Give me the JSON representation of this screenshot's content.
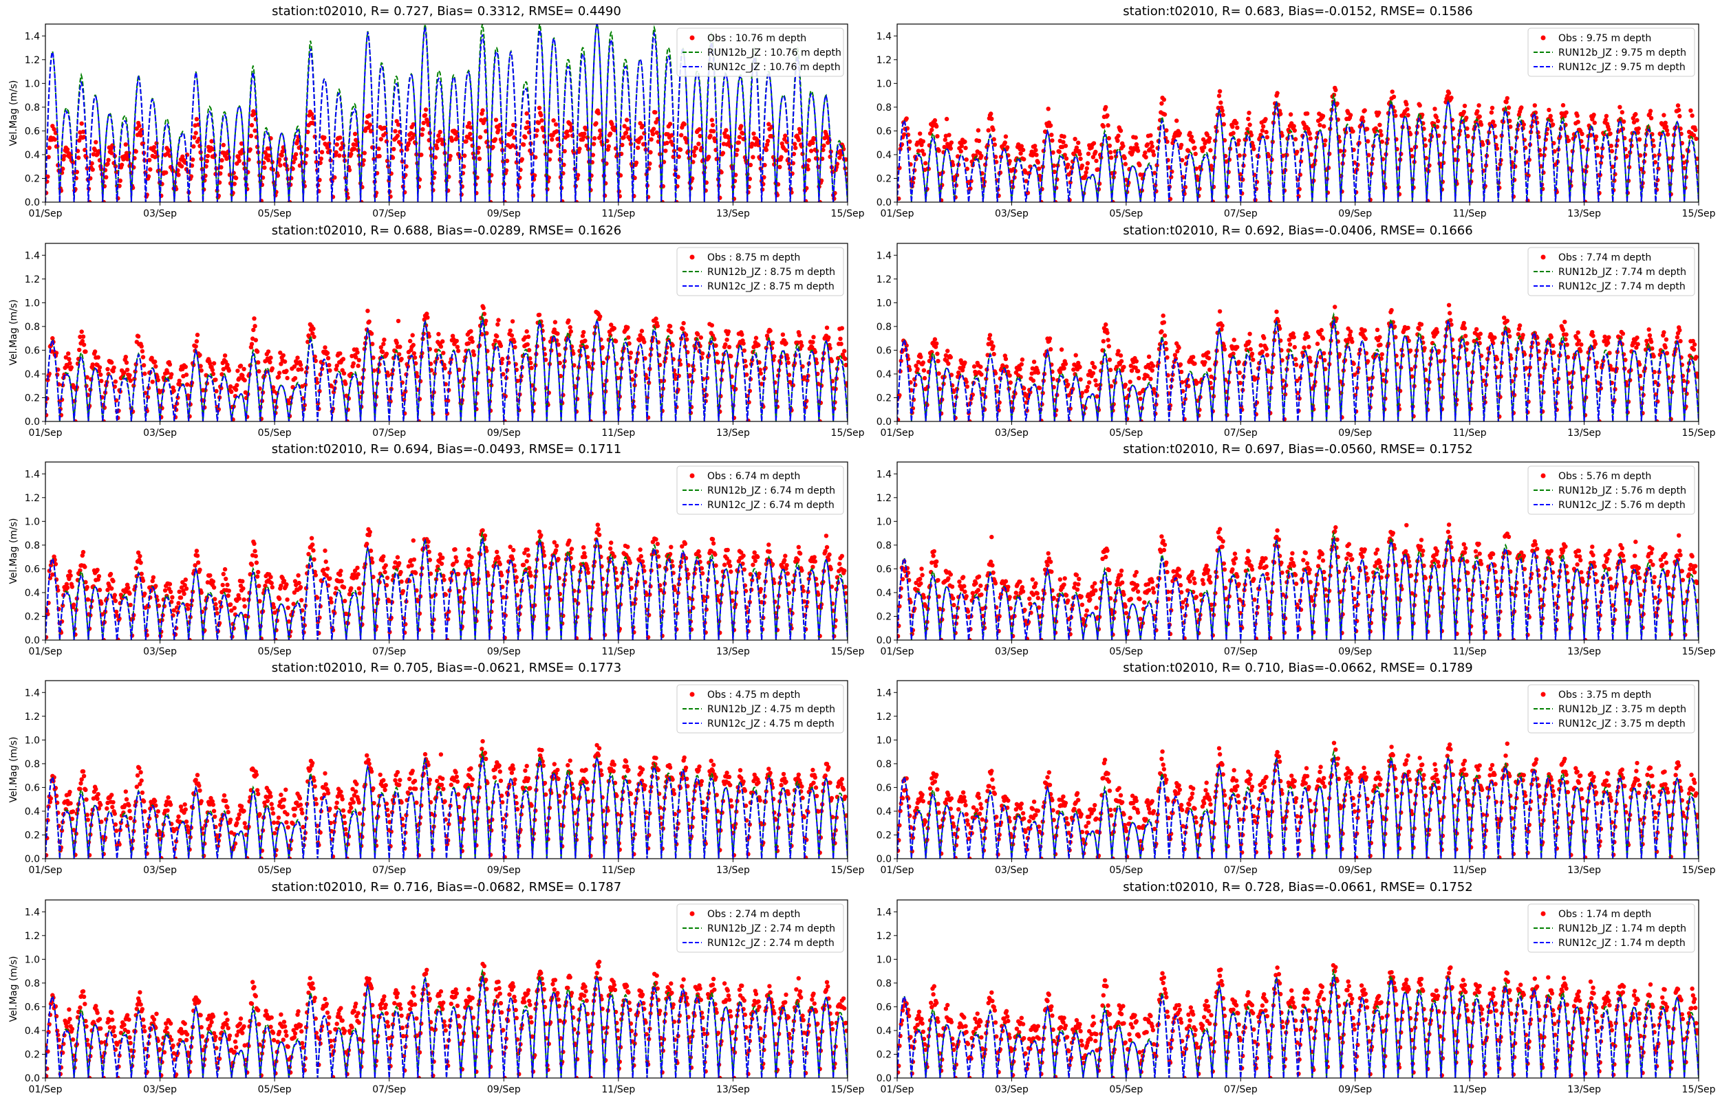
{
  "chart_data": {
    "type": "scatter+line",
    "ylabel": "Vel.Mag (m/s)",
    "ylim": [
      0,
      1.5
    ],
    "yticks": [
      "0.0",
      "0.2",
      "0.4",
      "0.6",
      "0.8",
      "1.0",
      "1.2",
      "1.4"
    ],
    "xlim_days": [
      0,
      14
    ],
    "xticks": [
      "01/Sep",
      "03/Sep",
      "05/Sep",
      "07/Sep",
      "09/Sep",
      "11/Sep",
      "13/Sep",
      "15/Sep"
    ],
    "series_colors": {
      "obs": "#ff0000",
      "run12b": "#008000",
      "run12c": "#0000ff"
    },
    "peak_profiles": {
      "deep_model": [
        1.27,
        0.77,
        1.07,
        0.9,
        0.75,
        0.72,
        1.07,
        0.87,
        0.7,
        0.57,
        1.1,
        0.8,
        0.76,
        0.8,
        1.15,
        0.6,
        0.58,
        0.59,
        1.36,
        1.03,
        0.95,
        0.8,
        1.44,
        1.17,
        1.06,
        1.07,
        1.5,
        1.1,
        1.07,
        1.1,
        1.5,
        1.3,
        1.27,
        1.0,
        1.5,
        1.38,
        1.2,
        1.3,
        1.5,
        1.43,
        1.2,
        1.2,
        1.47,
        1.3,
        1.3,
        1.1,
        1.43,
        1.08,
        1.07,
        1.3,
        1.1,
        0.89,
        1.3,
        0.93,
        0.9,
        0.5
      ],
      "deep_obs": [
        0.6,
        0.45,
        0.6,
        0.45,
        0.45,
        0.4,
        0.65,
        0.45,
        0.4,
        0.35,
        0.65,
        0.45,
        0.45,
        0.4,
        0.72,
        0.4,
        0.4,
        0.45,
        0.75,
        0.55,
        0.55,
        0.5,
        0.7,
        0.6,
        0.6,
        0.6,
        0.75,
        0.6,
        0.6,
        0.6,
        0.72,
        0.65,
        0.65,
        0.6,
        0.75,
        0.65,
        0.65,
        0.6,
        0.72,
        0.65,
        0.65,
        0.6,
        0.7,
        0.6,
        0.6,
        0.55,
        0.65,
        0.55,
        0.6,
        0.55,
        0.6,
        0.5,
        0.6,
        0.5,
        0.55,
        0.45
      ],
      "common_model": [
        0.69,
        0.4,
        0.58,
        0.45,
        0.4,
        0.38,
        0.57,
        0.45,
        0.38,
        0.3,
        0.6,
        0.4,
        0.4,
        0.2,
        0.6,
        0.45,
        0.3,
        0.3,
        0.72,
        0.52,
        0.42,
        0.4,
        0.78,
        0.55,
        0.6,
        0.55,
        0.85,
        0.6,
        0.6,
        0.6,
        0.9,
        0.65,
        0.68,
        0.6,
        0.86,
        0.72,
        0.75,
        0.65,
        0.85,
        0.72,
        0.7,
        0.65,
        0.8,
        0.72,
        0.75,
        0.7,
        0.72,
        0.6,
        0.65,
        0.6,
        0.7,
        0.6,
        0.65,
        0.6,
        0.68,
        0.55
      ],
      "common_obs": [
        0.65,
        0.5,
        0.72,
        0.55,
        0.5,
        0.45,
        0.72,
        0.5,
        0.45,
        0.4,
        0.7,
        0.5,
        0.5,
        0.4,
        0.78,
        0.55,
        0.5,
        0.45,
        0.85,
        0.6,
        0.55,
        0.55,
        0.88,
        0.65,
        0.7,
        0.65,
        0.88,
        0.7,
        0.7,
        0.7,
        0.92,
        0.75,
        0.75,
        0.7,
        0.9,
        0.78,
        0.8,
        0.72,
        0.92,
        0.78,
        0.78,
        0.72,
        0.85,
        0.75,
        0.78,
        0.72,
        0.8,
        0.7,
        0.72,
        0.68,
        0.75,
        0.68,
        0.72,
        0.68,
        0.75,
        0.65
      ]
    },
    "panels": [
      {
        "title": "station:t02010, R= 0.727, Bias= 0.3312, RMSE= 0.4490",
        "depth": "10.76",
        "legend": [
          "Obs : 10.76 m depth",
          "RUN12b_JZ : 10.76 m depth",
          "RUN12c_JZ : 10.76 m depth"
        ],
        "profile": "deep"
      },
      {
        "title": "station:t02010, R= 0.683, Bias=-0.0152, RMSE= 0.1586",
        "depth": "9.75",
        "legend": [
          "Obs : 9.75 m depth",
          "RUN12b_JZ : 9.75 m depth",
          "RUN12c_JZ : 9.75 m depth"
        ],
        "profile": "common"
      },
      {
        "title": "station:t02010, R= 0.688, Bias=-0.0289, RMSE= 0.1626",
        "depth": "8.75",
        "legend": [
          "Obs : 8.75 m depth",
          "RUN12b_JZ : 8.75 m depth",
          "RUN12c_JZ : 8.75 m depth"
        ],
        "profile": "common"
      },
      {
        "title": "station:t02010, R= 0.692, Bias=-0.0406, RMSE= 0.1666",
        "depth": "7.74",
        "legend": [
          "Obs : 7.74 m depth",
          "RUN12b_JZ : 7.74 m depth",
          "RUN12c_JZ : 7.74 m depth"
        ],
        "profile": "common"
      },
      {
        "title": "station:t02010, R= 0.694, Bias=-0.0493, RMSE= 0.1711",
        "depth": "6.74",
        "legend": [
          "Obs : 6.74 m depth",
          "RUN12b_JZ : 6.74 m depth",
          "RUN12c_JZ : 6.74 m depth"
        ],
        "profile": "common"
      },
      {
        "title": "station:t02010, R= 0.697, Bias=-0.0560, RMSE= 0.1752",
        "depth": "5.76",
        "legend": [
          "Obs : 5.76 m depth",
          "RUN12b_JZ : 5.76 m depth",
          "RUN12c_JZ : 5.76 m depth"
        ],
        "profile": "common"
      },
      {
        "title": "station:t02010, R= 0.705, Bias=-0.0621, RMSE= 0.1773",
        "depth": "4.75",
        "legend": [
          "Obs : 4.75 m depth",
          "RUN12b_JZ : 4.75 m depth",
          "RUN12c_JZ : 4.75 m depth"
        ],
        "profile": "common"
      },
      {
        "title": "station:t02010, R= 0.710, Bias=-0.0662, RMSE= 0.1789",
        "depth": "3.75",
        "legend": [
          "Obs : 3.75 m depth",
          "RUN12b_JZ : 3.75 m depth",
          "RUN12c_JZ : 3.75 m depth"
        ],
        "profile": "common"
      },
      {
        "title": "station:t02010, R= 0.716, Bias=-0.0682, RMSE= 0.1787",
        "depth": "2.74",
        "legend": [
          "Obs : 2.74 m depth",
          "RUN12b_JZ : 2.74 m depth",
          "RUN12c_JZ : 2.74 m depth"
        ],
        "profile": "common"
      },
      {
        "title": "station:t02010, R= 0.728, Bias=-0.0661, RMSE= 0.1752",
        "depth": "1.74",
        "legend": [
          "Obs : 1.74 m depth",
          "RUN12b_JZ : 1.74 m depth",
          "RUN12c_JZ : 1.74 m depth"
        ],
        "profile": "common"
      }
    ]
  }
}
